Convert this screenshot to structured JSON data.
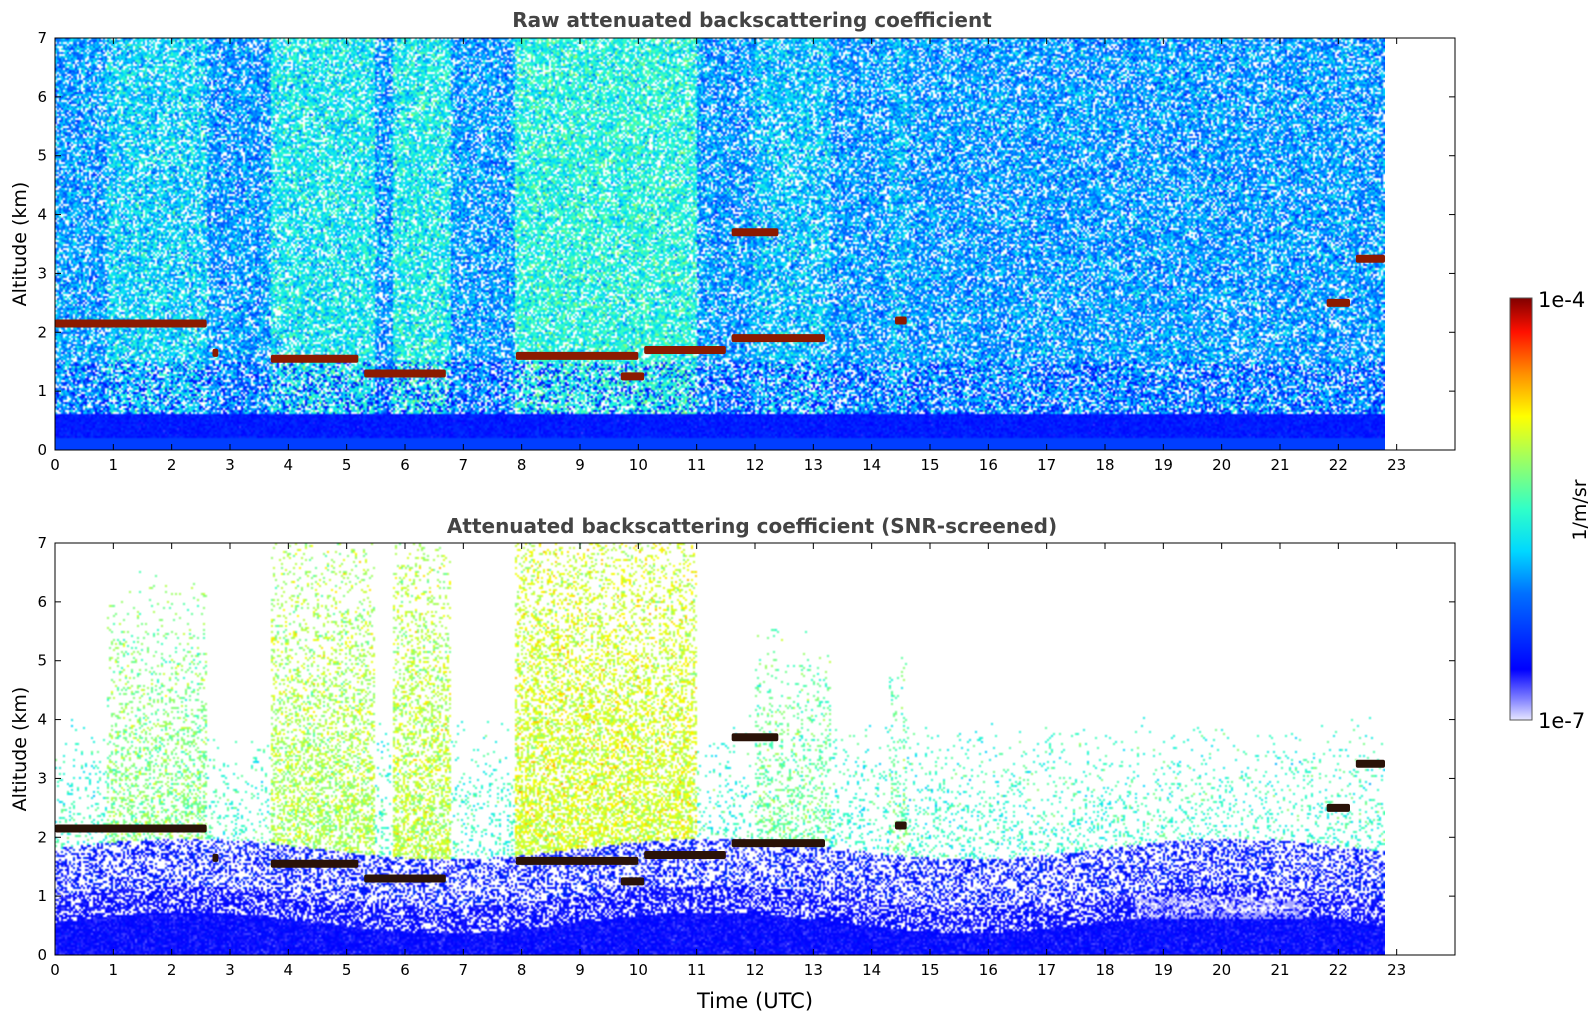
{
  "figure": {
    "colorbar": {
      "max_label": "1e-4",
      "min_label": "1e-7",
      "unit_label": "1/m/sr",
      "colormap": "jet"
    }
  },
  "chart_data": [
    {
      "type": "heatmap",
      "title": "Raw attenuated backscattering coefficient",
      "xlabel": "",
      "ylabel": "Altitude (km)",
      "xlim": [
        0,
        24
      ],
      "ylim": [
        0,
        7
      ],
      "x_ticks": [
        "0",
        "1",
        "2",
        "3",
        "4",
        "5",
        "6",
        "7",
        "8",
        "9",
        "10",
        "11",
        "12",
        "13",
        "14",
        "15",
        "16",
        "17",
        "18",
        "19",
        "20",
        "21",
        "22",
        "23"
      ],
      "y_ticks": [
        "0",
        "1",
        "2",
        "3",
        "4",
        "5",
        "6",
        "7"
      ],
      "data_end_time": 22.8,
      "screened": false,
      "grid": false,
      "cloud_layers": [
        {
          "t_start": 0.0,
          "t_end": 2.6,
          "altitude": 2.15
        },
        {
          "t_start": 2.7,
          "t_end": 2.8,
          "altitude": 1.65
        },
        {
          "t_start": 3.7,
          "t_end": 5.2,
          "altitude": 1.55
        },
        {
          "t_start": 5.3,
          "t_end": 6.7,
          "altitude": 1.3
        },
        {
          "t_start": 7.9,
          "t_end": 10.0,
          "altitude": 1.6
        },
        {
          "t_start": 9.7,
          "t_end": 10.1,
          "altitude": 1.25
        },
        {
          "t_start": 10.1,
          "t_end": 11.5,
          "altitude": 1.7
        },
        {
          "t_start": 11.6,
          "t_end": 12.4,
          "altitude": 3.7
        },
        {
          "t_start": 11.6,
          "t_end": 13.2,
          "altitude": 1.9
        },
        {
          "t_start": 14.4,
          "t_end": 14.6,
          "altitude": 2.2
        },
        {
          "t_start": 21.8,
          "t_end": 22.2,
          "altitude": 2.5
        },
        {
          "t_start": 22.3,
          "t_end": 22.8,
          "altitude": 3.25
        }
      ],
      "aerosol_layer_top_km": 0.6
    },
    {
      "type": "heatmap",
      "title": "Attenuated backscattering coefficient (SNR-screened)",
      "xlabel": "Time (UTC)",
      "ylabel": "Altitude (km)",
      "xlim": [
        0,
        24
      ],
      "ylim": [
        0,
        7
      ],
      "x_ticks": [
        "0",
        "1",
        "2",
        "3",
        "4",
        "5",
        "6",
        "7",
        "8",
        "9",
        "10",
        "11",
        "12",
        "13",
        "14",
        "15",
        "16",
        "17",
        "18",
        "19",
        "20",
        "21",
        "22",
        "23"
      ],
      "y_ticks": [
        "0",
        "1",
        "2",
        "3",
        "4",
        "5",
        "6",
        "7"
      ],
      "data_end_time": 22.8,
      "screened": true,
      "grid": false,
      "cloud_layers": [
        {
          "t_start": 0.0,
          "t_end": 2.6,
          "altitude": 2.15
        },
        {
          "t_start": 2.7,
          "t_end": 2.8,
          "altitude": 1.65
        },
        {
          "t_start": 3.7,
          "t_end": 5.2,
          "altitude": 1.55
        },
        {
          "t_start": 5.3,
          "t_end": 6.7,
          "altitude": 1.3
        },
        {
          "t_start": 7.9,
          "t_end": 10.0,
          "altitude": 1.6
        },
        {
          "t_start": 9.7,
          "t_end": 10.1,
          "altitude": 1.25
        },
        {
          "t_start": 10.1,
          "t_end": 11.5,
          "altitude": 1.7
        },
        {
          "t_start": 11.6,
          "t_end": 12.4,
          "altitude": 3.7
        },
        {
          "t_start": 11.6,
          "t_end": 13.2,
          "altitude": 1.9
        },
        {
          "t_start": 14.4,
          "t_end": 14.6,
          "altitude": 2.2
        },
        {
          "t_start": 21.8,
          "t_end": 22.2,
          "altitude": 2.5
        },
        {
          "t_start": 22.3,
          "t_end": 22.8,
          "altitude": 3.25
        }
      ],
      "aerosol_layer_top_km": 1.0
    }
  ]
}
